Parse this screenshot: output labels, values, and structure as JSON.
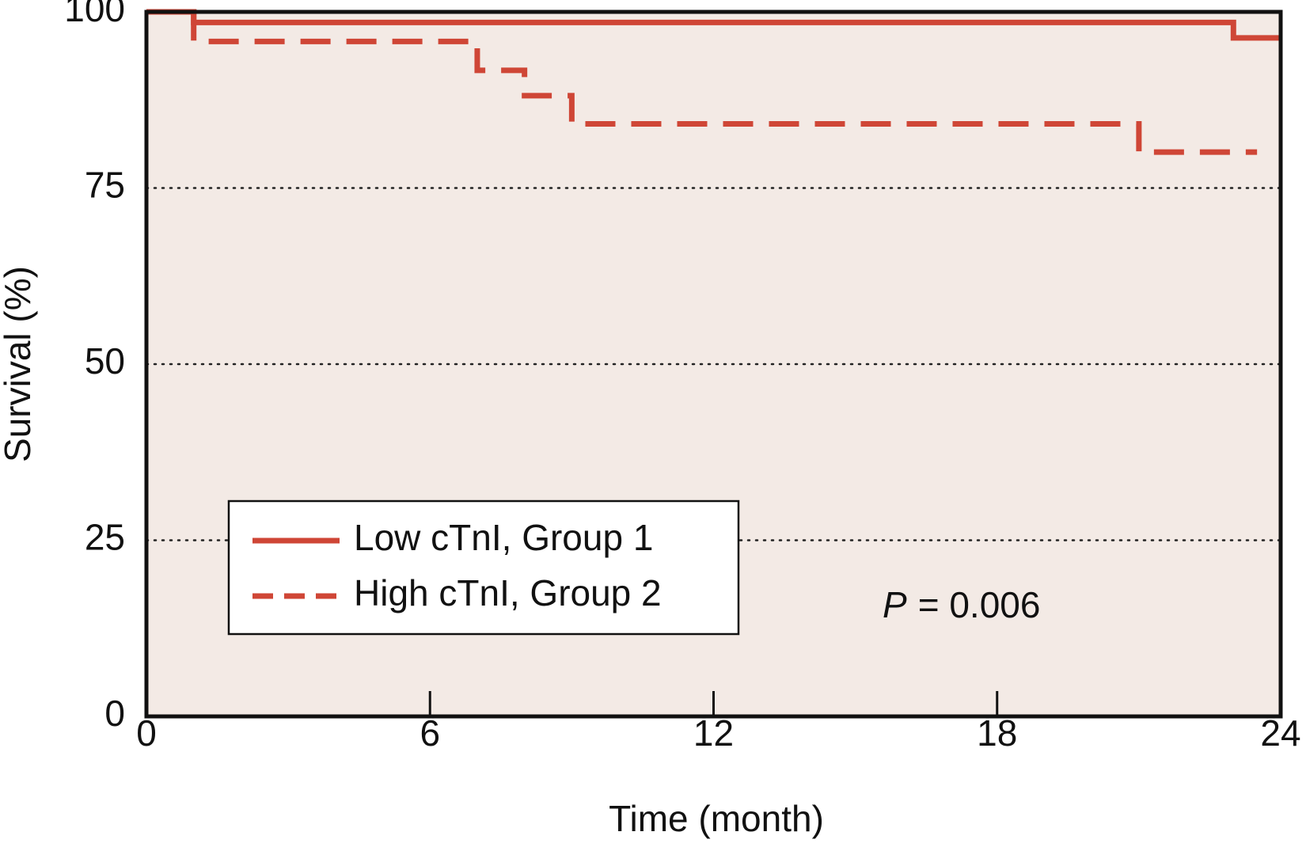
{
  "chart_data": {
    "type": "line",
    "step": "post",
    "xlabel": "Time (month)",
    "ylabel": "Survival (%)",
    "xlim": [
      0,
      24
    ],
    "xticks": [
      0,
      6,
      12,
      18,
      24
    ],
    "ylim": [
      0,
      100
    ],
    "yticks": [
      0,
      25,
      50,
      75,
      100
    ],
    "grid": true,
    "legend": "lower left",
    "background": "#f3eae5",
    "annotation_var": "P",
    "annotation_text": "= 0.006",
    "series": [
      {
        "name": "Low cTnI, Group 1",
        "color": "#cf4636",
        "dash": false,
        "x": [
          0,
          1,
          23,
          24
        ],
        "values": [
          100,
          98.5,
          96.3,
          96.3
        ]
      },
      {
        "name": "High cTnI, Group 2",
        "color": "#cf4636",
        "dash": true,
        "x": [
          0,
          1,
          7,
          8,
          9,
          21,
          23.5
        ],
        "values": [
          100,
          95.8,
          91.7,
          88.1,
          84.1,
          80.1,
          80.1
        ]
      }
    ]
  }
}
